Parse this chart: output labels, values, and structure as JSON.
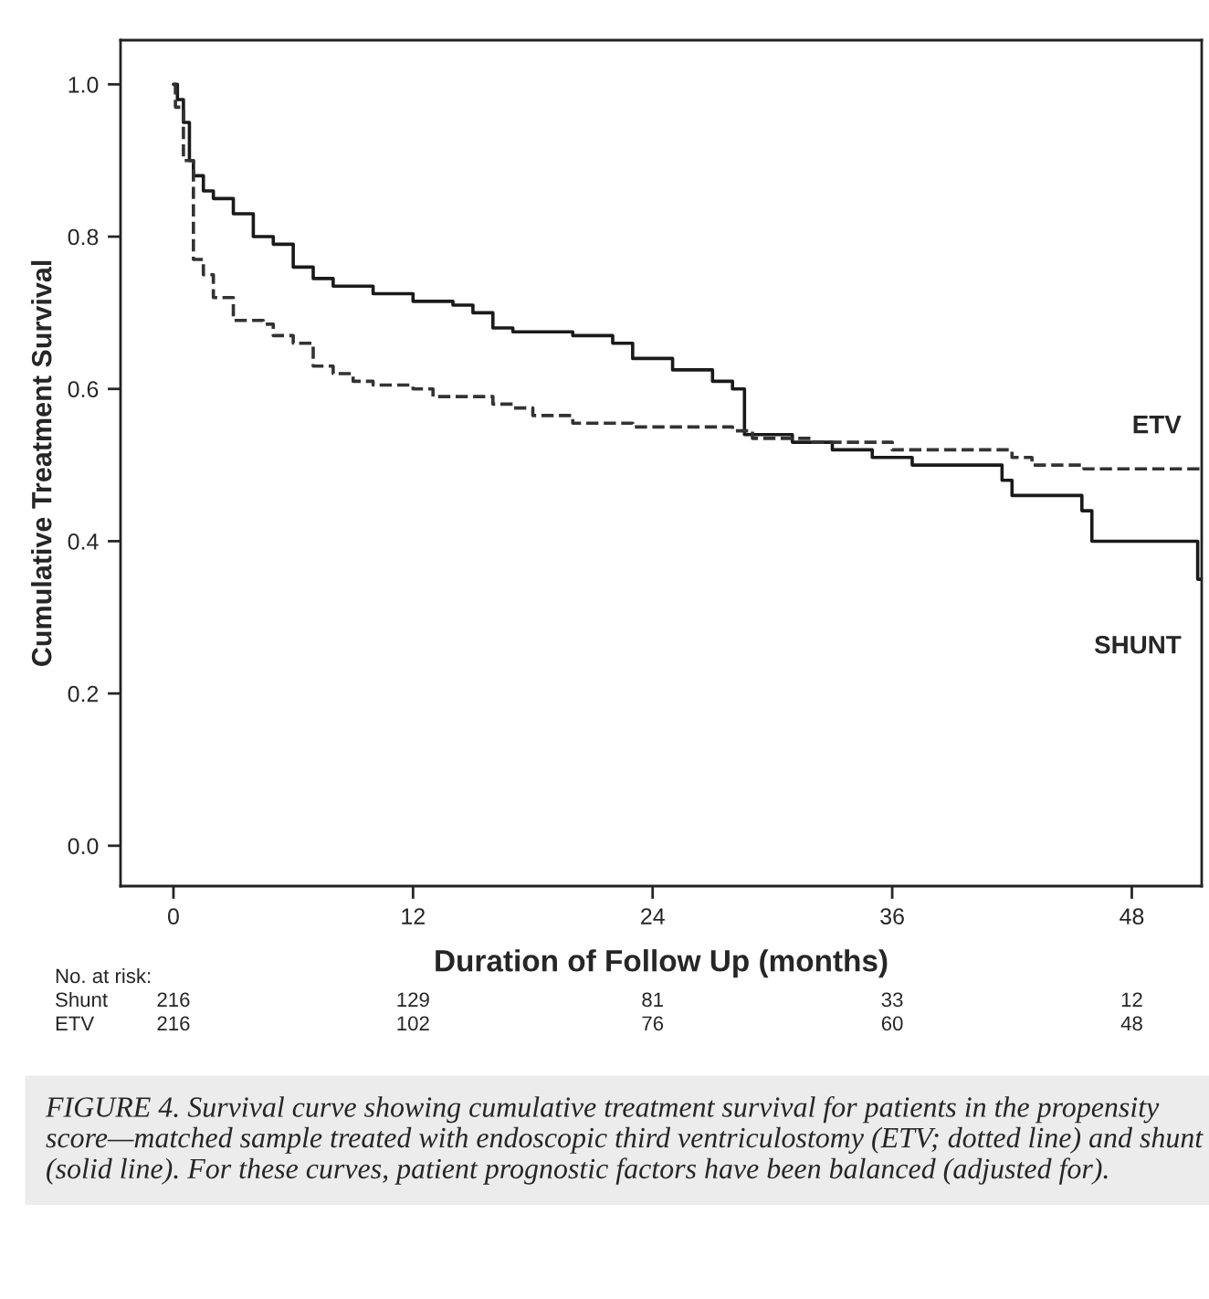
{
  "chart_data": {
    "type": "step",
    "xlabel": "Duration of Follow Up (months)",
    "ylabel": "Cumulative Treatment Survival",
    "xlim": [
      -2.65,
      51.5
    ],
    "ylim": [
      -0.053,
      1.058
    ],
    "xticks": [
      0,
      12,
      24,
      36,
      48
    ],
    "yticks": [
      {
        "value": 0,
        "label": "0.0"
      },
      {
        "value": 0.2,
        "label": "0.2"
      },
      {
        "value": 0.4,
        "label": "0.4"
      },
      {
        "value": 0.6,
        "label": "0.6"
      },
      {
        "value": 0.8,
        "label": "0.8"
      },
      {
        "value": 1,
        "label": "1.0"
      }
    ],
    "grid": false,
    "legend": false,
    "series": [
      {
        "name": "SHUNT",
        "color": "#1a1a1a",
        "line_style": "solid",
        "x": [
          0,
          0.2,
          0.5,
          0.8,
          1,
          1.5,
          2,
          3,
          4,
          5,
          6,
          7,
          8,
          10,
          12,
          14,
          15,
          16,
          17,
          20,
          22,
          23,
          25,
          27,
          28,
          28.6,
          31,
          33,
          35,
          37,
          41.5,
          42,
          45.5,
          46,
          51.3,
          51.5
        ],
        "values": [
          1.0,
          0.98,
          0.95,
          0.9,
          0.88,
          0.86,
          0.85,
          0.83,
          0.8,
          0.79,
          0.76,
          0.745,
          0.735,
          0.725,
          0.715,
          0.71,
          0.7,
          0.68,
          0.675,
          0.67,
          0.66,
          0.64,
          0.625,
          0.61,
          0.6,
          0.54,
          0.53,
          0.52,
          0.51,
          0.5,
          0.48,
          0.46,
          0.44,
          0.4,
          0.35,
          0.35
        ]
      },
      {
        "name": "ETV",
        "color": "#333333",
        "line_style": "dashed",
        "x": [
          0,
          0.1,
          0.5,
          1,
          1.5,
          2,
          3,
          4.5,
          5,
          6,
          7,
          8,
          9,
          10,
          12,
          13,
          16,
          17,
          18,
          20,
          23,
          28,
          29,
          32,
          36,
          42,
          43,
          45.6,
          51.5
        ],
        "values": [
          1.0,
          0.97,
          0.9,
          0.77,
          0.75,
          0.72,
          0.69,
          0.685,
          0.67,
          0.66,
          0.63,
          0.62,
          0.61,
          0.605,
          0.6,
          0.59,
          0.58,
          0.575,
          0.565,
          0.555,
          0.55,
          0.545,
          0.535,
          0.53,
          0.52,
          0.51,
          0.5,
          0.495,
          0.495
        ]
      }
    ],
    "annotations": [
      "No. at risk:",
      "Shunt",
      "216",
      "129",
      "81",
      "33",
      "12",
      "ETV",
      "216",
      "102",
      "76",
      "60",
      "48",
      "FIGURE 4. Survival curve showing cumulative treatment survival for patients in the propensity score—matched sample treated with endoscopic third ventriculostomy (ETV; dotted line) and shunt (solid line). For these curves, patient prognostic factors have been balanced (adjusted for)."
    ]
  }
}
